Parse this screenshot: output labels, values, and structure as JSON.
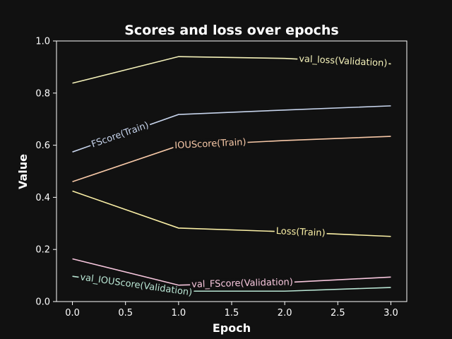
{
  "chart_data": {
    "type": "line",
    "title": "Scores and loss over epochs",
    "xlabel": "Epoch",
    "ylabel": "Value",
    "x": [
      0,
      1,
      2,
      3
    ],
    "xlim": [
      -0.15,
      3.15
    ],
    "ylim": [
      0.0,
      1.0
    ],
    "xticks": [
      "0.0",
      "0.5",
      "1.0",
      "1.5",
      "2.0",
      "2.5",
      "3.0"
    ],
    "yticks": [
      "0.0",
      "0.2",
      "0.4",
      "0.6",
      "0.8",
      "1.0"
    ],
    "grid": false,
    "legend": "inline labels on lines",
    "series": [
      {
        "name": "val_loss(Validation)",
        "values": [
          0.838,
          0.94,
          0.933,
          0.912
        ],
        "color": "#f4f1b9",
        "label_x": 2.55
      },
      {
        "name": "FScore(Train)",
        "values": [
          0.574,
          0.718,
          0.735,
          0.751
        ],
        "color": "#c7d4ec",
        "label_x": 0.45
      },
      {
        "name": "IOUScore(Train)",
        "values": [
          0.46,
          0.598,
          0.618,
          0.634
        ],
        "color": "#f7c8a7",
        "label_x": 1.3
      },
      {
        "name": "Loss(Train)",
        "values": [
          0.424,
          0.282,
          0.268,
          0.25
        ],
        "color": "#fbf0a6",
        "label_x": 2.15
      },
      {
        "name": "val_FScore(Validation)",
        "values": [
          0.164,
          0.063,
          0.073,
          0.094
        ],
        "color": "#f7c6dd",
        "label_x": 1.6
      },
      {
        "name": "val_IOUScore(Validation)",
        "values": [
          0.097,
          0.04,
          0.04,
          0.054
        ],
        "color": "#b9e6d4",
        "label_x": 0.6
      }
    ]
  }
}
